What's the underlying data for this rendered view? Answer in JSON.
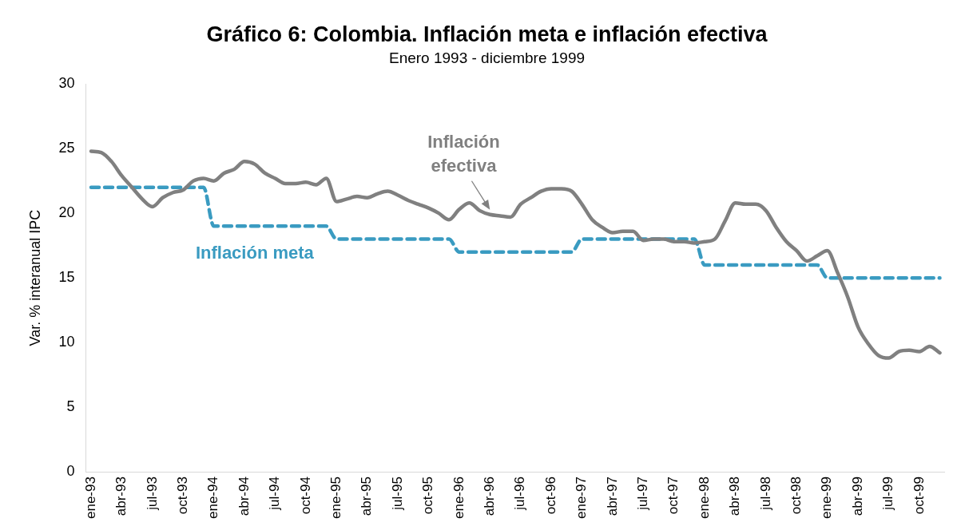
{
  "chart_data": {
    "type": "line",
    "title": "Gráfico 6: Colombia. Inflación meta e inflación efectiva",
    "subtitle": "Enero 1993 - diciembre 1999",
    "ylabel": "Var. % interanual IPC",
    "categories": [
      "ene-93",
      null,
      null,
      "abr-93",
      null,
      null,
      "jul-93",
      null,
      null,
      "oct-93",
      null,
      null,
      "ene-94",
      null,
      null,
      "abr-94",
      null,
      null,
      "jul-94",
      null,
      null,
      "oct-94",
      null,
      null,
      "ene-95",
      null,
      null,
      "abr-95",
      null,
      null,
      "jul-95",
      null,
      null,
      "oct-95",
      null,
      null,
      "ene-96",
      null,
      null,
      "abr-96",
      null,
      null,
      "jul-96",
      null,
      null,
      "oct-96",
      null,
      null,
      "ene-97",
      null,
      null,
      "abr-97",
      null,
      null,
      "jul-97",
      null,
      null,
      "oct-97",
      null,
      null,
      "ene-98",
      null,
      null,
      "abr-98",
      null,
      null,
      "jul-98",
      null,
      null,
      "oct-98",
      null,
      null,
      "ene-99",
      null,
      null,
      "abr-99",
      null,
      null,
      "jul-99",
      null,
      null,
      "oct-99",
      null,
      null
    ],
    "series": [
      {
        "name": "Inflación efectiva",
        "color": "#808080",
        "line_style": "solid",
        "values": [
          24.8,
          24.7,
          24.0,
          22.9,
          22.0,
          21.1,
          20.5,
          21.2,
          21.6,
          21.8,
          22.5,
          22.7,
          22.5,
          23.1,
          23.4,
          24.0,
          23.8,
          23.1,
          22.7,
          22.3,
          22.3,
          22.4,
          22.2,
          22.7,
          20.9,
          21.1,
          21.3,
          21.2,
          21.5,
          21.7,
          21.4,
          21.0,
          20.7,
          20.4,
          20.0,
          19.5,
          20.3,
          20.8,
          20.2,
          19.9,
          19.8,
          19.7,
          20.7,
          21.2,
          21.7,
          21.9,
          21.9,
          21.7,
          20.7,
          19.5,
          18.9,
          18.5,
          18.6,
          18.6,
          17.9,
          18.0,
          18.0,
          17.8,
          17.8,
          17.7,
          17.8,
          18.0,
          19.4,
          20.8,
          20.7,
          20.7,
          20.2,
          18.9,
          17.8,
          17.1,
          16.3,
          16.7,
          17.1,
          15.4,
          13.5,
          11.2,
          9.9,
          9.0,
          8.8,
          9.3,
          9.4,
          9.3,
          9.7,
          9.2
        ]
      },
      {
        "name": "Inflación meta",
        "color": "#3a9bc1",
        "line_style": "dashed",
        "values": [
          22,
          22,
          22,
          22,
          22,
          22,
          22,
          22,
          22,
          22,
          22,
          22,
          19,
          19,
          19,
          19,
          19,
          19,
          19,
          19,
          19,
          19,
          19,
          19,
          18,
          18,
          18,
          18,
          18,
          18,
          18,
          18,
          18,
          18,
          18,
          18,
          17,
          17,
          17,
          17,
          17,
          17,
          17,
          17,
          17,
          17,
          17,
          17,
          18,
          18,
          18,
          18,
          18,
          18,
          18,
          18,
          18,
          18,
          18,
          18,
          16,
          16,
          16,
          16,
          16,
          16,
          16,
          16,
          16,
          16,
          16,
          16,
          15,
          15,
          15,
          15,
          15,
          15,
          15,
          15,
          15,
          15,
          15,
          15
        ]
      }
    ],
    "ylim": [
      0,
      30
    ],
    "yticks": [
      0,
      5,
      10,
      15,
      20,
      25,
      30
    ],
    "grid": false,
    "legend": false,
    "marker": "none"
  }
}
